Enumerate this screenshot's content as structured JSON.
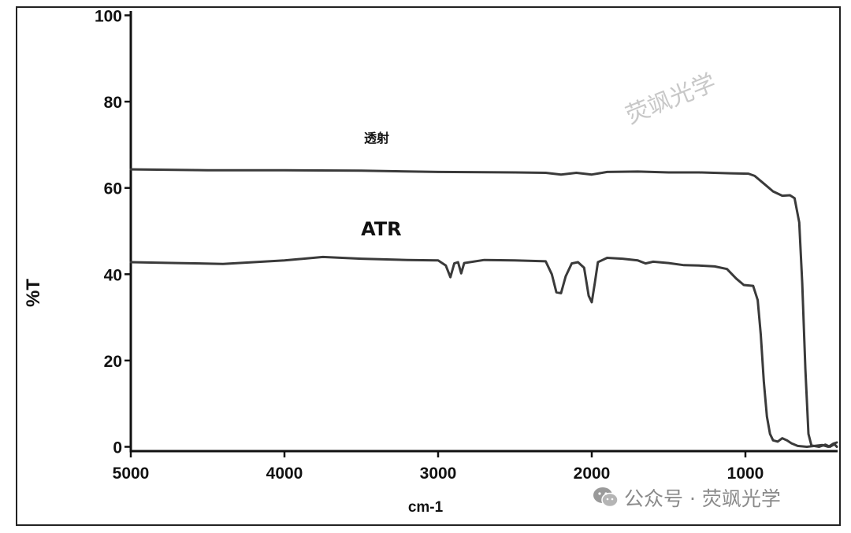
{
  "chart_data": {
    "type": "line",
    "xlabel": "cm-1",
    "ylabel": "%T",
    "xlim": [
      5000,
      400
    ],
    "ylim": [
      -1,
      101
    ],
    "x_reversed": true,
    "x_ticks": [
      5000,
      4000,
      3000,
      2000,
      1000
    ],
    "y_ticks": [
      0,
      20,
      40,
      60,
      80,
      100
    ],
    "grid": false,
    "legend": "none",
    "colors": {
      "line": "#3a3a3a",
      "axis": "#111111",
      "watermark": "#c8c8c8"
    },
    "annotations": [
      {
        "text": "透射",
        "x": 3400,
        "y": 70.5,
        "size": "small"
      },
      {
        "text": "ATR",
        "x": 3370,
        "y": 49,
        "size": "large"
      }
    ],
    "series": [
      {
        "points": [
          [
            5000,
            64.3
          ],
          [
            4500,
            64.1
          ],
          [
            4000,
            64.1
          ],
          [
            3500,
            64.0
          ],
          [
            3000,
            63.7
          ],
          [
            2500,
            63.6
          ],
          [
            2300,
            63.5
          ],
          [
            2200,
            63.1
          ],
          [
            2100,
            63.5
          ],
          [
            2000,
            63.1
          ],
          [
            1900,
            63.7
          ],
          [
            1700,
            63.8
          ],
          [
            1500,
            63.6
          ],
          [
            1300,
            63.6
          ],
          [
            1100,
            63.4
          ],
          [
            980,
            63.3
          ],
          [
            940,
            62.8
          ],
          [
            880,
            61.0
          ],
          [
            820,
            59.2
          ],
          [
            760,
            58.2
          ],
          [
            710,
            58.3
          ],
          [
            680,
            57.6
          ],
          [
            650,
            52.0
          ],
          [
            630,
            38.0
          ],
          [
            610,
            18.0
          ],
          [
            590,
            3.0
          ],
          [
            570,
            0.3
          ],
          [
            520,
            0.0
          ],
          [
            480,
            0.5
          ],
          [
            450,
            0.0
          ],
          [
            420,
            0.6
          ],
          [
            405,
            0.0
          ]
        ]
      },
      {
        "points": [
          [
            5000,
            42.8
          ],
          [
            4700,
            42.6
          ],
          [
            4400,
            42.4
          ],
          [
            4000,
            43.2
          ],
          [
            3750,
            44.0
          ],
          [
            3500,
            43.6
          ],
          [
            3200,
            43.3
          ],
          [
            3000,
            43.2
          ],
          [
            2950,
            42.0
          ],
          [
            2920,
            39.3
          ],
          [
            2895,
            42.5
          ],
          [
            2870,
            42.8
          ],
          [
            2850,
            40.2
          ],
          [
            2830,
            42.6
          ],
          [
            2700,
            43.3
          ],
          [
            2500,
            43.2
          ],
          [
            2300,
            43.0
          ],
          [
            2260,
            40.0
          ],
          [
            2230,
            35.8
          ],
          [
            2200,
            35.6
          ],
          [
            2170,
            39.5
          ],
          [
            2130,
            42.5
          ],
          [
            2090,
            42.8
          ],
          [
            2050,
            41.5
          ],
          [
            2020,
            35.0
          ],
          [
            2000,
            33.5
          ],
          [
            1980,
            38.0
          ],
          [
            1960,
            42.8
          ],
          [
            1900,
            43.8
          ],
          [
            1800,
            43.6
          ],
          [
            1700,
            43.2
          ],
          [
            1650,
            42.5
          ],
          [
            1600,
            42.9
          ],
          [
            1500,
            42.6
          ],
          [
            1400,
            42.1
          ],
          [
            1300,
            42.0
          ],
          [
            1200,
            41.8
          ],
          [
            1120,
            41.2
          ],
          [
            1060,
            39.0
          ],
          [
            1010,
            37.5
          ],
          [
            950,
            37.3
          ],
          [
            920,
            34.0
          ],
          [
            900,
            26.0
          ],
          [
            880,
            15.0
          ],
          [
            860,
            7.0
          ],
          [
            840,
            3.0
          ],
          [
            820,
            1.5
          ],
          [
            790,
            1.2
          ],
          [
            760,
            2.0
          ],
          [
            730,
            1.5
          ],
          [
            700,
            0.8
          ],
          [
            660,
            0.2
          ],
          [
            600,
            0.0
          ],
          [
            500,
            0.4
          ],
          [
            460,
            0.0
          ],
          [
            430,
            0.7
          ],
          [
            405,
            1.0
          ]
        ]
      }
    ]
  },
  "watermarks": {
    "diagonal": "荧飒光学",
    "footer": "公众号 · 荧飒光学"
  }
}
